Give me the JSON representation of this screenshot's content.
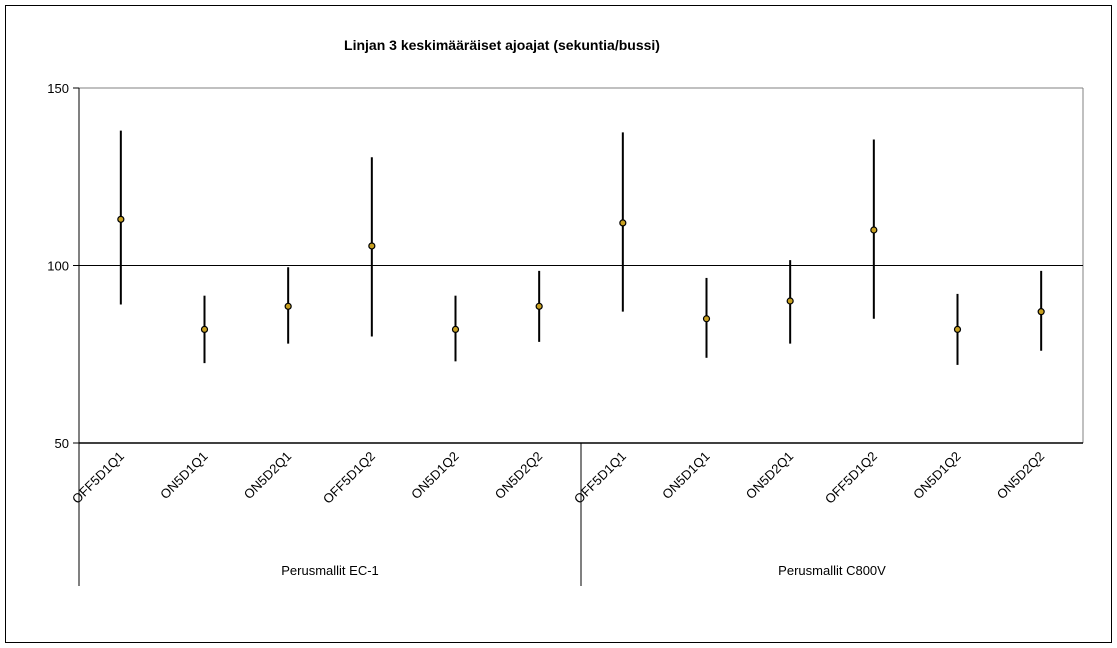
{
  "chart_data": {
    "type": "scatter",
    "title": "Linjan 3 keskimääräiset ajoajat (sekuntia/bussi)",
    "ylim": [
      50,
      150
    ],
    "yticks": [
      "50",
      "100",
      "150"
    ],
    "ytick_values": [
      50,
      100,
      150
    ],
    "grid": "horizontal line at 100",
    "error_bars": true,
    "groups": [
      {
        "label": "Perusmallit EC-1",
        "categories": [
          "OFF5D1Q1",
          "ON5D1Q1",
          "ON5D2Q1",
          "OFF5D1Q2",
          "ON5D1Q2",
          "ON5D2Q2"
        ],
        "mean": [
          113,
          82,
          88.5,
          105.5,
          82,
          88.5
        ],
        "low": [
          89,
          72.5,
          78,
          80,
          73,
          78.5
        ],
        "high": [
          138,
          91.5,
          99.5,
          130.5,
          91.5,
          98.5
        ]
      },
      {
        "label": "Perusmallit C800V",
        "categories": [
          "OFF5D1Q1",
          "ON5D1Q1",
          "ON5D2Q1",
          "OFF5D1Q2",
          "ON5D1Q2",
          "ON5D2Q2"
        ],
        "mean": [
          112,
          85,
          90,
          110,
          82,
          87
        ],
        "low": [
          87,
          74,
          78,
          85,
          72,
          76
        ],
        "high": [
          137.5,
          96.5,
          101.5,
          135.5,
          92,
          98.5
        ]
      }
    ],
    "colors": {
      "marker_fill": "#c8a020",
      "marker_edge": "#000000",
      "bar": "#000000",
      "axis": "#000000",
      "plot_border": "#808080"
    }
  }
}
